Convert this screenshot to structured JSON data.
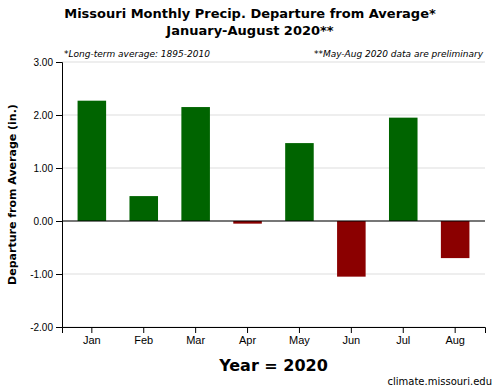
{
  "chart_data": {
    "type": "bar",
    "title": "Missouri Monthly Precip. Departure from Average*",
    "subtitle": "January-August 2020**",
    "ylabel": "Departure from Average (in.)",
    "xlabel": "Year = 2020",
    "annotations": [
      "*Long-term average: 1895-2010",
      "**May-Aug 2020 data are preliminary",
      "climate.missouri.edu"
    ],
    "categories": [
      "Jan",
      "Feb",
      "Mar",
      "Apr",
      "May",
      "Jun",
      "Jul",
      "Aug"
    ],
    "values": [
      2.27,
      0.47,
      2.15,
      -0.05,
      1.47,
      -1.05,
      1.95,
      -0.7
    ],
    "colors": [
      "#006400",
      "#006400",
      "#006400",
      "#8B0000",
      "#006400",
      "#8B0000",
      "#006400",
      "#8B0000"
    ],
    "ylim": [
      -2.0,
      3.0
    ],
    "yticks": [
      {
        "value": -2.0,
        "label": "-2.00"
      },
      {
        "value": -1.0,
        "label": "-1.00"
      },
      {
        "value": 0.0,
        "label": "0.00"
      },
      {
        "value": 1.0,
        "label": "1.00"
      },
      {
        "value": 2.0,
        "label": "2.00"
      },
      {
        "value": 3.0,
        "label": "3.00"
      }
    ],
    "grid": true
  }
}
